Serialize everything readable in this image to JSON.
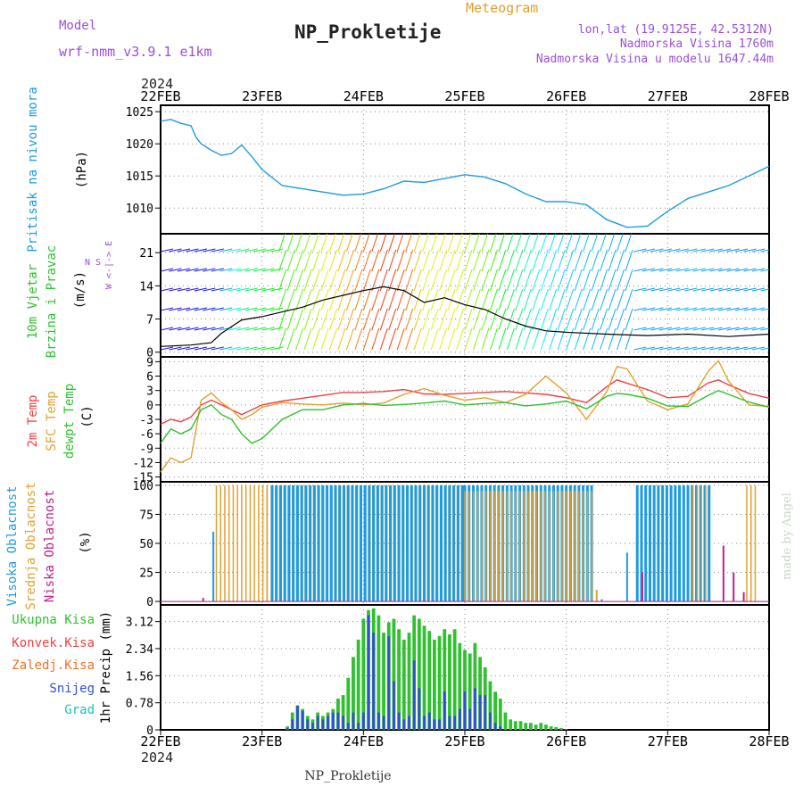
{
  "header": {
    "model_label": "Model",
    "model_name": "wrf-nmm_v3.9.1 e1km",
    "title": "NP_Prokletije",
    "subtitle": "Meteogram",
    "lonlat": "lon,lat (19.9125E, 42.5312N)",
    "elevation": "Nadmorska Visina 1760m",
    "model_elevation": "Nadmorska Visina u modelu 1647.44m",
    "year_top": "2024",
    "year_bottom": "2024",
    "footer": "NP_Prokletije",
    "watermark": "made by Angel"
  },
  "colors": {
    "pressure": "#1e9be0",
    "temp2m": "#f04040",
    "sfc": "#e0a030",
    "dew": "#30c030",
    "high_cloud": "#1e9be0",
    "mid_cloud": "#e0a030",
    "low_cloud": "#c0208a",
    "precip_total": "#30c030",
    "precip_snow": "#3050d0",
    "purple_text": "#9a4fd8",
    "orange_text": "#e0a030"
  },
  "chart_data": {
    "type": "meteogram",
    "x_ticks": [
      "22FEB",
      "23FEB",
      "24FEB",
      "25FEB",
      "26FEB",
      "27FEB",
      "28FEB"
    ],
    "x_range_days": [
      0,
      6
    ],
    "panels": {
      "pressure": {
        "type": "line",
        "ylabel": "(hPa)",
        "side_label": "Pritisak na nivou mora",
        "yticks": [
          1010,
          1015,
          1020,
          1025
        ],
        "ylim": [
          1006,
          1026
        ],
        "x": [
          0,
          0.1,
          0.2,
          0.3,
          0.35,
          0.4,
          0.5,
          0.6,
          0.7,
          0.8,
          0.9,
          1.0,
          1.2,
          1.4,
          1.6,
          1.8,
          2.0,
          2.2,
          2.4,
          2.6,
          2.8,
          3.0,
          3.2,
          3.4,
          3.6,
          3.8,
          4.0,
          4.2,
          4.4,
          4.6,
          4.8,
          5.0,
          5.2,
          5.4,
          5.6,
          5.8,
          6.0
        ],
        "values": [
          1023.5,
          1023.8,
          1023.2,
          1022.8,
          1021.0,
          1020.0,
          1019.0,
          1018.2,
          1018.5,
          1019.8,
          1018.0,
          1016.0,
          1013.5,
          1013.0,
          1012.5,
          1012.0,
          1012.2,
          1013.0,
          1014.2,
          1014.0,
          1014.6,
          1015.2,
          1014.8,
          1013.8,
          1012.2,
          1011.0,
          1011.0,
          1010.5,
          1008.2,
          1007.0,
          1007.2,
          1009.5,
          1011.5,
          1012.5,
          1013.5,
          1015.0,
          1016.5
        ]
      },
      "wind": {
        "type": "line",
        "ylabel": "(m/s)",
        "side_labels": [
          "10m Vjetar",
          "Brzina i Pravac"
        ],
        "compass": [
          "N",
          "E",
          "S",
          "W"
        ],
        "yticks": [
          0,
          7,
          14,
          21
        ],
        "ylim": [
          -1,
          25
        ],
        "x": [
          0,
          0.3,
          0.5,
          0.6,
          0.8,
          1.0,
          1.2,
          1.4,
          1.6,
          1.8,
          2.0,
          2.2,
          2.4,
          2.6,
          2.8,
          3.0,
          3.2,
          3.4,
          3.6,
          3.8,
          4.0,
          4.4,
          4.8,
          5.2,
          5.6,
          6.0
        ],
        "values": [
          1.2,
          1.5,
          2.0,
          4.0,
          6.8,
          7.5,
          8.5,
          9.5,
          11.0,
          12.0,
          13.0,
          13.8,
          13.0,
          10.5,
          11.5,
          10.0,
          9.0,
          7.0,
          5.5,
          4.5,
          4.2,
          3.8,
          3.5,
          3.8,
          3.3,
          3.8
        ]
      },
      "temperature": {
        "type": "line",
        "ylabel": "(C)",
        "side_labels": [
          "2m Temp",
          "SFC Temp",
          "dewpt Temp"
        ],
        "yticks": [
          -15,
          -12,
          -9,
          -6,
          -3,
          0,
          3,
          6,
          9
        ],
        "ylim": [
          -16,
          10
        ],
        "x": [
          0,
          0.1,
          0.2,
          0.3,
          0.4,
          0.5,
          0.6,
          0.7,
          0.8,
          0.9,
          1.0,
          1.2,
          1.4,
          1.6,
          1.8,
          2.0,
          2.2,
          2.4,
          2.6,
          2.8,
          3.0,
          3.2,
          3.4,
          3.6,
          3.8,
          4.0,
          4.2,
          4.4,
          4.5,
          4.6,
          4.8,
          5.0,
          5.2,
          5.4,
          5.5,
          5.6,
          5.8,
          6.0
        ],
        "series": [
          {
            "name": "2m Temp",
            "color": "#f04040",
            "values": [
              -4,
              -3,
              -3.5,
              -2.5,
              0,
              1,
              0,
              -1,
              -2,
              -1,
              0,
              0.8,
              1.4,
              2,
              2.6,
              2.6,
              2.8,
              3.2,
              2.3,
              2.2,
              2.4,
              2.6,
              2.8,
              2.5,
              2.2,
              1.5,
              0.5,
              3.8,
              5.2,
              4.5,
              3.2,
              1.5,
              1.8,
              4.6,
              5.2,
              4.2,
              2.4,
              1.4
            ]
          },
          {
            "name": "SFC Temp",
            "color": "#e0a030",
            "values": [
              -14,
              -11,
              -12,
              -11,
              1,
              2.5,
              0.5,
              -1,
              -3,
              -2,
              -0.5,
              0.5,
              0.2,
              0,
              0.4,
              0,
              0.4,
              2.2,
              3.4,
              2,
              1,
              1.5,
              0.5,
              2.2,
              6.0,
              2.5,
              -3,
              2.8,
              8,
              7.5,
              0.8,
              -1,
              0.2,
              7,
              9.2,
              5,
              0,
              -0.3
            ]
          },
          {
            "name": "dewpt Temp",
            "color": "#30c030",
            "values": [
              -8,
              -5,
              -6,
              -5,
              -1,
              0,
              -2,
              -3,
              -6,
              -8,
              -7,
              -3,
              -1,
              -1,
              0,
              0.3,
              -0.1,
              0.1,
              0.4,
              0.8,
              0,
              0.3,
              0.5,
              -0.2,
              0.2,
              0.8,
              -0.8,
              1.8,
              2.4,
              2.2,
              1.4,
              -0.2,
              -0.3,
              2.0,
              3.0,
              2.2,
              0.6,
              -0.5
            ]
          }
        ]
      },
      "cloud": {
        "type": "bar",
        "ylabel": "(%)",
        "side_labels": [
          "Visoka Oblacnost",
          "Srednja Oblacnost",
          "Niska Oblacnost"
        ],
        "yticks": [
          0,
          25,
          50,
          75,
          100
        ],
        "ylim": [
          -3,
          103
        ],
        "segments": [
          {
            "layer": "mid",
            "x0": 0.55,
            "x1": 1.05,
            "value": 100
          },
          {
            "layer": "mid",
            "x0": 1.05,
            "x1": 3.0,
            "value": 100
          },
          {
            "layer": "high",
            "x0": 1.1,
            "x1": 3.0,
            "value": 100
          },
          {
            "layer": "high",
            "x0": 3.0,
            "x1": 4.25,
            "value": 100
          },
          {
            "layer": "mid",
            "x0": 3.0,
            "x1": 4.25,
            "value": 95
          },
          {
            "layer": "high",
            "x0": 4.7,
            "x1": 5.45,
            "value": 100
          },
          {
            "layer": "mid",
            "x0": 5.25,
            "x1": 5.4,
            "value": 100
          },
          {
            "layer": "mid",
            "x0": 5.78,
            "x1": 5.88,
            "value": 100
          }
        ],
        "spikes": [
          {
            "layer": "high",
            "x": 0.52,
            "value": 60
          },
          {
            "layer": "low",
            "x": 0.42,
            "value": 3
          },
          {
            "layer": "high",
            "x": 4.35,
            "value": 2
          },
          {
            "layer": "mid",
            "x": 4.3,
            "value": 10
          },
          {
            "layer": "high",
            "x": 4.6,
            "value": 42
          },
          {
            "layer": "low",
            "x": 4.75,
            "value": 25
          },
          {
            "layer": "low",
            "x": 5.55,
            "value": 48
          },
          {
            "layer": "low",
            "x": 5.65,
            "value": 25
          },
          {
            "layer": "low",
            "x": 5.75,
            "value": 8
          }
        ]
      },
      "precip": {
        "type": "bar",
        "ylabel": "1hr Precip (mm)",
        "side_labels": [
          "Ukupna Kisa",
          "Konvek.Kisa",
          "Zaledj.Kisa",
          "Snijeg",
          "Grad"
        ],
        "side_colors": [
          "#30c030",
          "#f04040",
          "#f07020",
          "#3050d0",
          "#20c0c0"
        ],
        "yticks": [
          0,
          0.78,
          1.56,
          2.34,
          3.12
        ],
        "ylim": [
          0,
          3.6
        ],
        "x": [
          1.25,
          1.3,
          1.35,
          1.4,
          1.45,
          1.5,
          1.55,
          1.6,
          1.65,
          1.7,
          1.75,
          1.8,
          1.85,
          1.9,
          1.95,
          2.0,
          2.05,
          2.1,
          2.15,
          2.2,
          2.25,
          2.3,
          2.35,
          2.4,
          2.45,
          2.5,
          2.55,
          2.6,
          2.65,
          2.7,
          2.75,
          2.8,
          2.85,
          2.9,
          2.95,
          3.0,
          3.05,
          3.1,
          3.15,
          3.2,
          3.25,
          3.3,
          3.35,
          3.4,
          3.45,
          3.5,
          3.55,
          3.6,
          3.65,
          3.7,
          3.75,
          3.8,
          3.85,
          3.9,
          3.95,
          4.0
        ],
        "series": [
          {
            "name": "Ukupna Kisa",
            "values": [
              0.1,
              0.5,
              0.7,
              0.6,
              0.4,
              0.3,
              0.5,
              0.4,
              0.5,
              0.6,
              0.9,
              1.0,
              1.5,
              2.1,
              2.6,
              3.2,
              3.45,
              3.5,
              3.3,
              2.8,
              3.1,
              3.2,
              2.9,
              2.6,
              2.8,
              3.3,
              3.2,
              3.0,
              2.85,
              2.6,
              2.7,
              2.9,
              2.75,
              2.9,
              2.5,
              2.3,
              2.2,
              2.5,
              2.1,
              1.8,
              1.4,
              1.1,
              0.9,
              0.5,
              0.3,
              0.25,
              0.25,
              0.2,
              0.2,
              0.15,
              0.2,
              0.15,
              0.1,
              0.08,
              0.05,
              0.02
            ]
          },
          {
            "name": "Snijeg",
            "values": [
              0.05,
              0.3,
              0.7,
              0.55,
              0.3,
              0.2,
              0.4,
              0.3,
              0.4,
              0.5,
              0.5,
              0.4,
              0.2,
              0.5,
              0.2,
              0.5,
              3.3,
              2.8,
              0.5,
              0.4,
              2.7,
              1.4,
              0.5,
              0.3,
              0.4,
              2.0,
              1.2,
              0.4,
              0.5,
              0.3,
              0.3,
              1.1,
              0.4,
              0.4,
              0.6,
              1.1,
              0.6,
              1.2,
              1.0,
              1.0,
              0.5,
              0.2,
              0.1,
              0,
              0,
              0,
              0,
              0,
              0,
              0,
              0,
              0,
              0,
              0,
              0,
              0
            ]
          }
        ]
      }
    }
  }
}
